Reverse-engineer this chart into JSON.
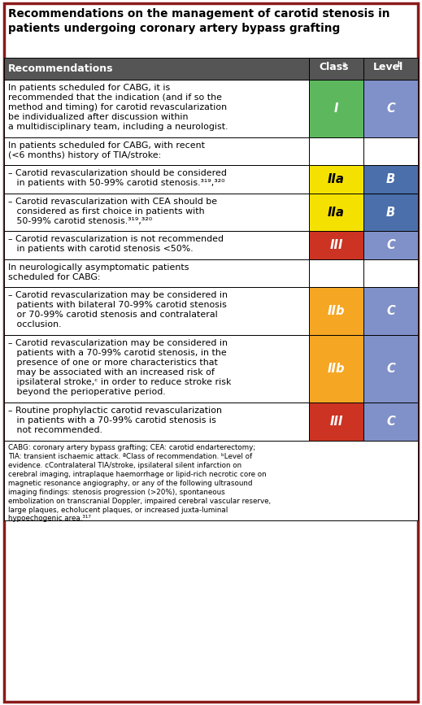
{
  "title_line1": "Recommendations on the management of carotid stenosis in",
  "title_line2": "patients undergoing coronary artery bypass grafting",
  "border_color": "#8B1A1A",
  "header_bg": "#555555",
  "header_fg": "#FFFFFF",
  "rows": [
    {
      "lines": [
        "In patients scheduled for CABG, it is",
        "recommended that the indication (and if so the",
        "method and timing) for carotid revascularization",
        "be individualized after discussion within",
        "a multidisciplinary team, including a neurologist."
      ],
      "class_label": "I",
      "class_color": "#5DB85D",
      "level_label": "C",
      "level_color": "#8090C8",
      "class_text_color": "white",
      "level_text_color": "white"
    },
    {
      "lines": [
        "In patients scheduled for CABG, with recent",
        "(<6 months) history of TIA/stroke:"
      ],
      "class_label": "",
      "class_color": "#FFFFFF",
      "level_label": "",
      "level_color": "#FFFFFF",
      "class_text_color": "black",
      "level_text_color": "black"
    },
    {
      "lines": [
        "– Carotid revascularization should be considered",
        "   in patients with 50-99% carotid stenosis.³¹⁹,³²⁰"
      ],
      "class_label": "IIa",
      "class_color": "#F5E100",
      "level_label": "B",
      "level_color": "#4A6FAA",
      "class_text_color": "black",
      "level_text_color": "white"
    },
    {
      "lines": [
        "– Carotid revascularization with CEA should be",
        "   considered as first choice in patients with",
        "   50-99% carotid stenosis.³¹⁹,³²⁰"
      ],
      "class_label": "IIa",
      "class_color": "#F5E100",
      "level_label": "B",
      "level_color": "#4A6FAA",
      "class_text_color": "black",
      "level_text_color": "white"
    },
    {
      "lines": [
        "– Carotid revascularization is not recommended",
        "   in patients with carotid stenosis <50%."
      ],
      "class_label": "III",
      "class_color": "#CC3322",
      "level_label": "C",
      "level_color": "#8090C8",
      "class_text_color": "white",
      "level_text_color": "white"
    },
    {
      "lines": [
        "In neurologically asymptomatic patients",
        "scheduled for CABG:"
      ],
      "class_label": "",
      "class_color": "#FFFFFF",
      "level_label": "",
      "level_color": "#FFFFFF",
      "class_text_color": "black",
      "level_text_color": "black"
    },
    {
      "lines": [
        "– Carotid revascularization may be considered in",
        "   patients with bilateral 70-99% carotid stenosis",
        "   or 70-99% carotid stenosis and contralateral",
        "   occlusion."
      ],
      "class_label": "IIb",
      "class_color": "#F5A623",
      "level_label": "C",
      "level_color": "#8090C8",
      "class_text_color": "white",
      "level_text_color": "white"
    },
    {
      "lines": [
        "– Carotid revascularization may be considered in",
        "   patients with a 70-99% carotid stenosis, in the",
        "   presence of one or more characteristics that",
        "   may be associated with an increased risk of",
        "   ipsilateral stroke,ᶜ in order to reduce stroke risk",
        "   beyond the perioperative period."
      ],
      "class_label": "IIb",
      "class_color": "#F5A623",
      "level_label": "C",
      "level_color": "#8090C8",
      "class_text_color": "white",
      "level_text_color": "white"
    },
    {
      "lines": [
        "– Routine prophylactic carotid revascularization",
        "   in patients with a 70-99% carotid stenosis is",
        "   not recommended."
      ],
      "class_label": "III",
      "class_color": "#CC3322",
      "level_label": "C",
      "level_color": "#8090C8",
      "class_text_color": "white",
      "level_text_color": "white"
    }
  ],
  "footnote_lines": [
    "CABG: coronary artery bypass grafting; CEA: carotid endarterectomy;",
    "TIA: transient ischaemic attack. ªClass of recommendation. ᵇLevel of",
    "evidence. cContralateral TIA/stroke, ipsilateral silent infarction on",
    "cerebral imaging, intraplaque haemorrhage or lipid-rich necrotic core on",
    "magnetic resonance angiography, or any of the following ultrasound",
    "imaging findings: stenosis progression (>20%), spontaneous",
    "embolization on transcranial Doppler, impaired cerebral vascular reserve,",
    "large plaques, echolucent plaques, or increased juxta-luminal",
    "hypoechogenic area.³¹⁷"
  ]
}
